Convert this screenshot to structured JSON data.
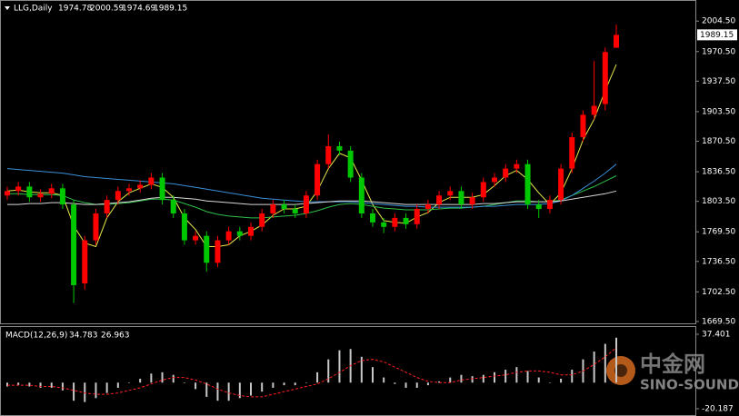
{
  "chart_data": {
    "type": "candlestick",
    "symbol": "LLG,Daily",
    "open": [
      1810,
      1815,
      1820,
      1808,
      1812,
      1818,
      1800,
      1712,
      1760,
      1790,
      1805,
      1815,
      1818,
      1822,
      1830,
      1805,
      1790,
      1760,
      1765,
      1735,
      1760,
      1770,
      1765,
      1775,
      1790,
      1800,
      1795,
      1790,
      1810,
      1845,
      1865,
      1860,
      1830,
      1790,
      1780,
      1775,
      1785,
      1778,
      1795,
      1800,
      1810,
      1815,
      1800,
      1808,
      1825,
      1830,
      1840,
      1845,
      1800,
      1795,
      1805,
      1840,
      1875,
      1900,
      1912,
      1974.78
    ],
    "high": [
      1820,
      1825,
      1825,
      1817,
      1823,
      1823,
      1805,
      1765,
      1795,
      1810,
      1820,
      1823,
      1827,
      1835,
      1835,
      1810,
      1795,
      1770,
      1770,
      1765,
      1775,
      1775,
      1780,
      1795,
      1805,
      1805,
      1800,
      1815,
      1850,
      1878,
      1870,
      1865,
      1835,
      1795,
      1785,
      1790,
      1790,
      1800,
      1805,
      1815,
      1820,
      1820,
      1813,
      1830,
      1835,
      1845,
      1850,
      1850,
      1805,
      1810,
      1845,
      1880,
      1905,
      1960,
      1975,
      2000.59
    ],
    "low": [
      1805,
      1810,
      1803,
      1803,
      1807,
      1795,
      1690,
      1705,
      1755,
      1785,
      1800,
      1810,
      1813,
      1817,
      1800,
      1785,
      1755,
      1755,
      1725,
      1730,
      1755,
      1760,
      1760,
      1770,
      1785,
      1790,
      1785,
      1785,
      1805,
      1840,
      1855,
      1825,
      1785,
      1775,
      1768,
      1770,
      1773,
      1773,
      1790,
      1795,
      1805,
      1795,
      1795,
      1803,
      1820,
      1825,
      1835,
      1795,
      1785,
      1790,
      1800,
      1835,
      1870,
      1895,
      1905,
      1974.69
    ],
    "close": [
      1815,
      1820,
      1808,
      1812,
      1818,
      1800,
      1710,
      1760,
      1790,
      1805,
      1815,
      1818,
      1822,
      1830,
      1805,
      1790,
      1760,
      1765,
      1735,
      1760,
      1770,
      1765,
      1775,
      1790,
      1800,
      1795,
      1790,
      1810,
      1845,
      1865,
      1860,
      1830,
      1790,
      1780,
      1775,
      1785,
      1778,
      1795,
      1800,
      1810,
      1815,
      1800,
      1808,
      1825,
      1830,
      1840,
      1845,
      1800,
      1795,
      1805,
      1840,
      1875,
      1900,
      1910,
      1970,
      1989.15
    ],
    "up_color": "#ff0000",
    "down_color": "#00c800",
    "ylim": [
      1666.4,
      2027
    ],
    "yticks": [
      {
        "value": 2004.5,
        "label": "2004.50"
      },
      {
        "value": 1970.5,
        "label": "1970.50"
      },
      {
        "value": 1937.5,
        "label": "1937.50"
      },
      {
        "value": 1903.5,
        "label": "1903.50"
      },
      {
        "value": 1870.5,
        "label": "1870.50"
      },
      {
        "value": 1836.5,
        "label": "1836.50"
      },
      {
        "value": 1803.5,
        "label": "1803.50"
      },
      {
        "value": 1769.5,
        "label": "1769.50"
      },
      {
        "value": 1736.5,
        "label": "1736.50"
      },
      {
        "value": 1702.5,
        "label": "1702.50"
      },
      {
        "value": 1669.5,
        "label": "1669.50"
      }
    ],
    "ma_lines": [
      {
        "color": "#e8e84a",
        "values": [
          1815,
          1816,
          1814,
          1813,
          1813,
          1810,
          1776,
          1757,
          1753,
          1785,
          1803,
          1813,
          1818,
          1823,
          1819,
          1808,
          1785,
          1772,
          1753,
          1753,
          1755,
          1765,
          1770,
          1777,
          1788,
          1795,
          1795,
          1798,
          1815,
          1840,
          1857,
          1852,
          1827,
          1800,
          1782,
          1780,
          1779,
          1786,
          1791,
          1802,
          1808,
          1808,
          1808,
          1811,
          1821,
          1832,
          1838,
          1828,
          1813,
          1800,
          1813,
          1840,
          1872,
          1895,
          1927,
          1956
        ]
      },
      {
        "color": "#2fbf4a",
        "values": [
          1812,
          1812,
          1811,
          1811,
          1811,
          1810,
          1805,
          1802,
          1800,
          1800,
          1801,
          1802,
          1804,
          1806,
          1806,
          1805,
          1801,
          1797,
          1792,
          1789,
          1787,
          1786,
          1785,
          1785,
          1786,
          1787,
          1788,
          1790,
          1793,
          1797,
          1800,
          1801,
          1800,
          1798,
          1796,
          1795,
          1794,
          1794,
          1794,
          1795,
          1796,
          1796,
          1797,
          1798,
          1800,
          1802,
          1804,
          1804,
          1803,
          1803,
          1805,
          1810,
          1815,
          1820,
          1826,
          1832
        ]
      },
      {
        "color": "#3a8fd8",
        "values": [
          1840,
          1839,
          1838,
          1837,
          1836,
          1835,
          1833,
          1831,
          1830,
          1829,
          1828,
          1827,
          1826,
          1825,
          1824,
          1823,
          1821,
          1819,
          1817,
          1815,
          1813,
          1811,
          1809,
          1807,
          1806,
          1805,
          1804,
          1803,
          1803,
          1803,
          1803,
          1803,
          1802,
          1801,
          1800,
          1799,
          1798,
          1798,
          1797,
          1797,
          1797,
          1797,
          1797,
          1798,
          1798,
          1799,
          1800,
          1800,
          1800,
          1801,
          1804,
          1810,
          1818,
          1826,
          1835,
          1845
        ]
      },
      {
        "color": "#d8d8d8",
        "values": [
          1800,
          1800,
          1801,
          1801,
          1802,
          1802,
          1801,
          1800,
          1800,
          1801,
          1802,
          1803,
          1805,
          1807,
          1808,
          1808,
          1807,
          1806,
          1804,
          1803,
          1802,
          1801,
          1800,
          1800,
          1800,
          1800,
          1800,
          1801,
          1802,
          1803,
          1804,
          1804,
          1804,
          1803,
          1802,
          1801,
          1800,
          1800,
          1800,
          1800,
          1800,
          1800,
          1800,
          1801,
          1801,
          1802,
          1803,
          1803,
          1803,
          1803,
          1804,
          1806,
          1808,
          1810,
          1812,
          1815
        ]
      }
    ],
    "macd": {
      "title": "MACD(12,26,9)",
      "histogram": [
        -3,
        -2,
        -3,
        -4,
        -4,
        -6,
        -14,
        -15,
        -12,
        -8,
        -4,
        0,
        3,
        7,
        8,
        6,
        0,
        -5,
        -11,
        -14,
        -14,
        -12,
        -10,
        -7,
        -4,
        -2,
        -2,
        0,
        8,
        18,
        25,
        26,
        20,
        12,
        4,
        -1,
        -4,
        -4,
        -2,
        1,
        4,
        6,
        5,
        6,
        8,
        10,
        12,
        9,
        4,
        0,
        3,
        10,
        18,
        24,
        30,
        34.783
      ],
      "signal": [
        -2,
        -2,
        -2,
        -3,
        -3,
        -4,
        -6,
        -8,
        -9,
        -9,
        -8,
        -6,
        -4,
        -1,
        2,
        4,
        4,
        2,
        -1,
        -5,
        -8,
        -10,
        -11,
        -11,
        -9,
        -7,
        -5,
        -3,
        -1,
        3,
        8,
        13,
        17,
        18,
        16,
        12,
        8,
        4,
        1,
        0,
        0,
        2,
        3,
        4,
        5,
        6,
        8,
        9,
        9,
        8,
        6,
        6,
        9,
        14,
        20,
        26.963
      ],
      "hist_color": "#c8c8c8",
      "signal_color": "#ff2020",
      "ylim": [
        -20.187,
        37.401
      ],
      "yticks": [
        -20.187,
        37.401
      ]
    },
    "watermark": {
      "brand": "中金网",
      "name": "SINO-SOUND"
    }
  }
}
